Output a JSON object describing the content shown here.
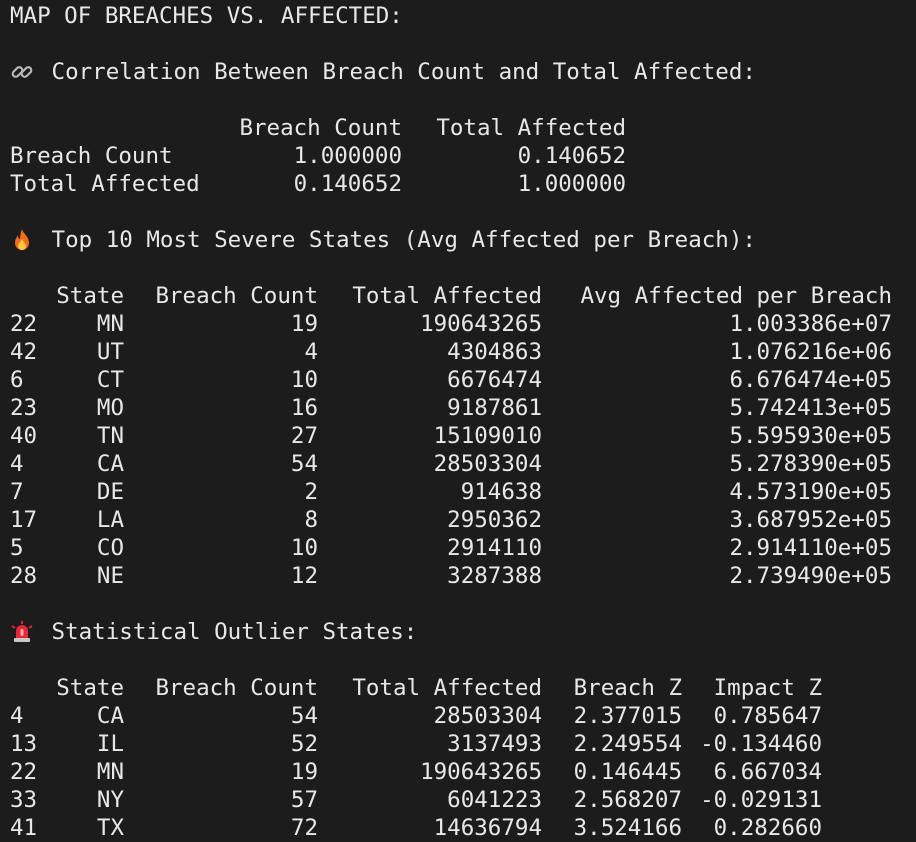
{
  "title": "MAP OF BREACHES VS. AFFECTED:",
  "correlation": {
    "heading": "Correlation Between Breach Count and Total Affected:",
    "icon": "link-icon",
    "columns": [
      "Breach Count",
      "Total Affected"
    ],
    "rows": [
      {
        "label": "Breach Count",
        "values": [
          "1.000000",
          "0.140652"
        ]
      },
      {
        "label": "Total Affected",
        "values": [
          "0.140652",
          "1.000000"
        ]
      }
    ]
  },
  "top_states": {
    "heading": "Top 10 Most Severe States (Avg Affected per Breach):",
    "icon": "fire-icon",
    "columns": [
      "State",
      "Breach Count",
      "Total Affected",
      "Avg Affected per Breach"
    ],
    "rows": [
      {
        "index": "22",
        "state": "MN",
        "breach": "19",
        "total": "190643265",
        "avg": "1.003386e+07"
      },
      {
        "index": "42",
        "state": "UT",
        "breach": "4",
        "total": "4304863",
        "avg": "1.076216e+06"
      },
      {
        "index": "6",
        "state": "CT",
        "breach": "10",
        "total": "6676474",
        "avg": "6.676474e+05"
      },
      {
        "index": "23",
        "state": "MO",
        "breach": "16",
        "total": "9187861",
        "avg": "5.742413e+05"
      },
      {
        "index": "40",
        "state": "TN",
        "breach": "27",
        "total": "15109010",
        "avg": "5.595930e+05"
      },
      {
        "index": "4",
        "state": "CA",
        "breach": "54",
        "total": "28503304",
        "avg": "5.278390e+05"
      },
      {
        "index": "7",
        "state": "DE",
        "breach": "2",
        "total": "914638",
        "avg": "4.573190e+05"
      },
      {
        "index": "17",
        "state": "LA",
        "breach": "8",
        "total": "2950362",
        "avg": "3.687952e+05"
      },
      {
        "index": "5",
        "state": "CO",
        "breach": "10",
        "total": "2914110",
        "avg": "2.914110e+05"
      },
      {
        "index": "28",
        "state": "NE",
        "breach": "12",
        "total": "3287388",
        "avg": "2.739490e+05"
      }
    ]
  },
  "outliers": {
    "heading": "Statistical Outlier States:",
    "icon": "siren-icon",
    "columns": [
      "State",
      "Breach Count",
      "Total Affected",
      "Breach Z",
      "Impact Z"
    ],
    "rows": [
      {
        "index": "4",
        "state": "CA",
        "breach": "54",
        "total": "28503304",
        "bz": "2.377015",
        "iz": "0.785647"
      },
      {
        "index": "13",
        "state": "IL",
        "breach": "52",
        "total": "3137493",
        "bz": "2.249554",
        "iz": "-0.134460"
      },
      {
        "index": "22",
        "state": "MN",
        "breach": "19",
        "total": "190643265",
        "bz": "0.146445",
        "iz": "6.667034"
      },
      {
        "index": "33",
        "state": "NY",
        "breach": "57",
        "total": "6041223",
        "bz": "2.568207",
        "iz": "-0.029131"
      },
      {
        "index": "41",
        "state": "TX",
        "breach": "72",
        "total": "14636794",
        "bz": "3.524166",
        "iz": "0.282660"
      }
    ]
  },
  "colors": {
    "background": "#1c1c1c",
    "text": "#e8e8e8"
  }
}
